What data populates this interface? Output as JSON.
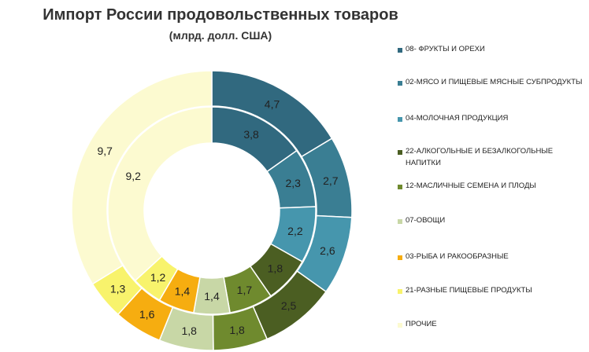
{
  "title": "Импорт России продовольственных товаров",
  "subtitle": "(млрд. долл. США)",
  "chart_data": {
    "type": "donut",
    "categories": [
      "08- ФРУКТЫ И ОРЕХИ",
      "02-МЯСО И ПИЩЕВЫЕ МЯСНЫЕ СУБПРОДУКТЫ",
      "04-МОЛОЧНАЯ ПРОДУКЦИЯ",
      "22-АЛКОГОЛЬНЫЕ И БЕЗАЛКОГОЛЬНЫЕ НАПИТКИ",
      "12-МАСЛИЧНЫЕ СЕМЕНА И ПЛОДЫ",
      "07-ОВОЩИ",
      "03-РЫБА И РАКООБРАЗНЫЕ",
      "21-РАЗНЫЕ ПИЩЕВЫЕ ПРОДУКТЫ",
      "ПРОЧИЕ"
    ],
    "colors": [
      "#31697f",
      "#3a7e93",
      "#4696ad",
      "#4b5e22",
      "#6f8a2e",
      "#c8d7a6",
      "#f6ad10",
      "#f8f36c",
      "#fcfad0"
    ],
    "series": [
      {
        "values": [
          4.7,
          2.7,
          2.6,
          2.5,
          1.8,
          1.8,
          1.6,
          1.3,
          9.7
        ],
        "labels": [
          "4,7",
          "2,7",
          "2,6",
          "2,5",
          "1,8",
          "1,8",
          "1,6",
          "1,3",
          "9,7"
        ]
      },
      {
        "values": [
          3.8,
          2.3,
          2.2,
          1.8,
          1.7,
          1.4,
          1.4,
          1.2,
          9.2
        ],
        "labels": [
          "3,8",
          "2,3",
          "2,2",
          "1,8",
          "1,7",
          "1,4",
          "1,4",
          "1,2",
          "9,2"
        ]
      }
    ],
    "legend": "right"
  }
}
